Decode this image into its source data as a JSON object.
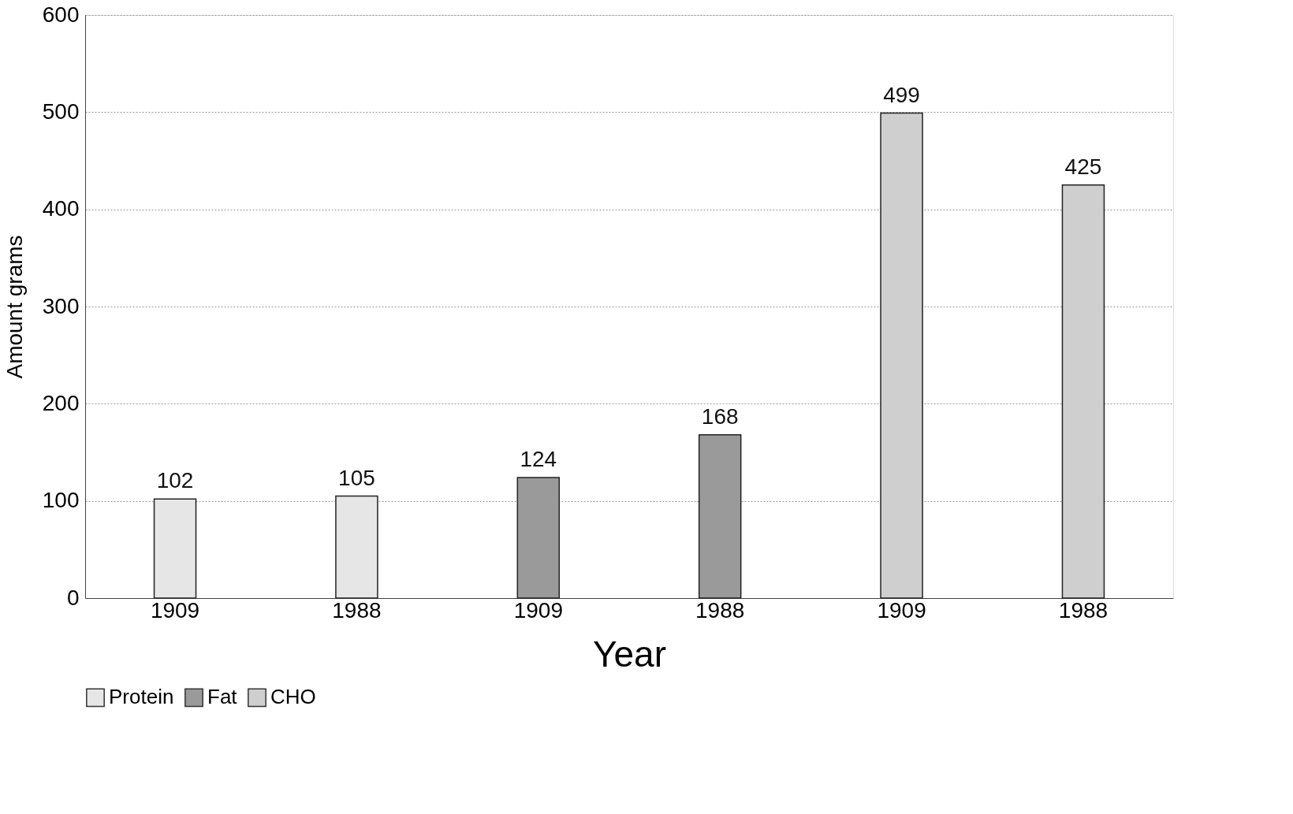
{
  "chart_data": {
    "type": "bar",
    "xlabel": "Year",
    "ylabel": "Amount  grams",
    "categories": [
      "1909",
      "1988",
      "1909",
      "1988",
      "1909",
      "1988"
    ],
    "series": [
      {
        "name": "Protein",
        "color": "#e6e6e6",
        "values": [
          102,
          105,
          null,
          null,
          null,
          null
        ]
      },
      {
        "name": "Fat",
        "color": "#9a9a9a",
        "values": [
          null,
          null,
          124,
          168,
          null,
          null
        ]
      },
      {
        "name": "CHO",
        "color": "#cfcfcf",
        "values": [
          null,
          null,
          null,
          null,
          499,
          425
        ]
      }
    ],
    "ylim": [
      0,
      600
    ],
    "yticks": [
      0,
      100,
      200,
      300,
      400,
      500,
      600
    ],
    "grid": "y",
    "legend": "bottom",
    "data_labels": true
  }
}
